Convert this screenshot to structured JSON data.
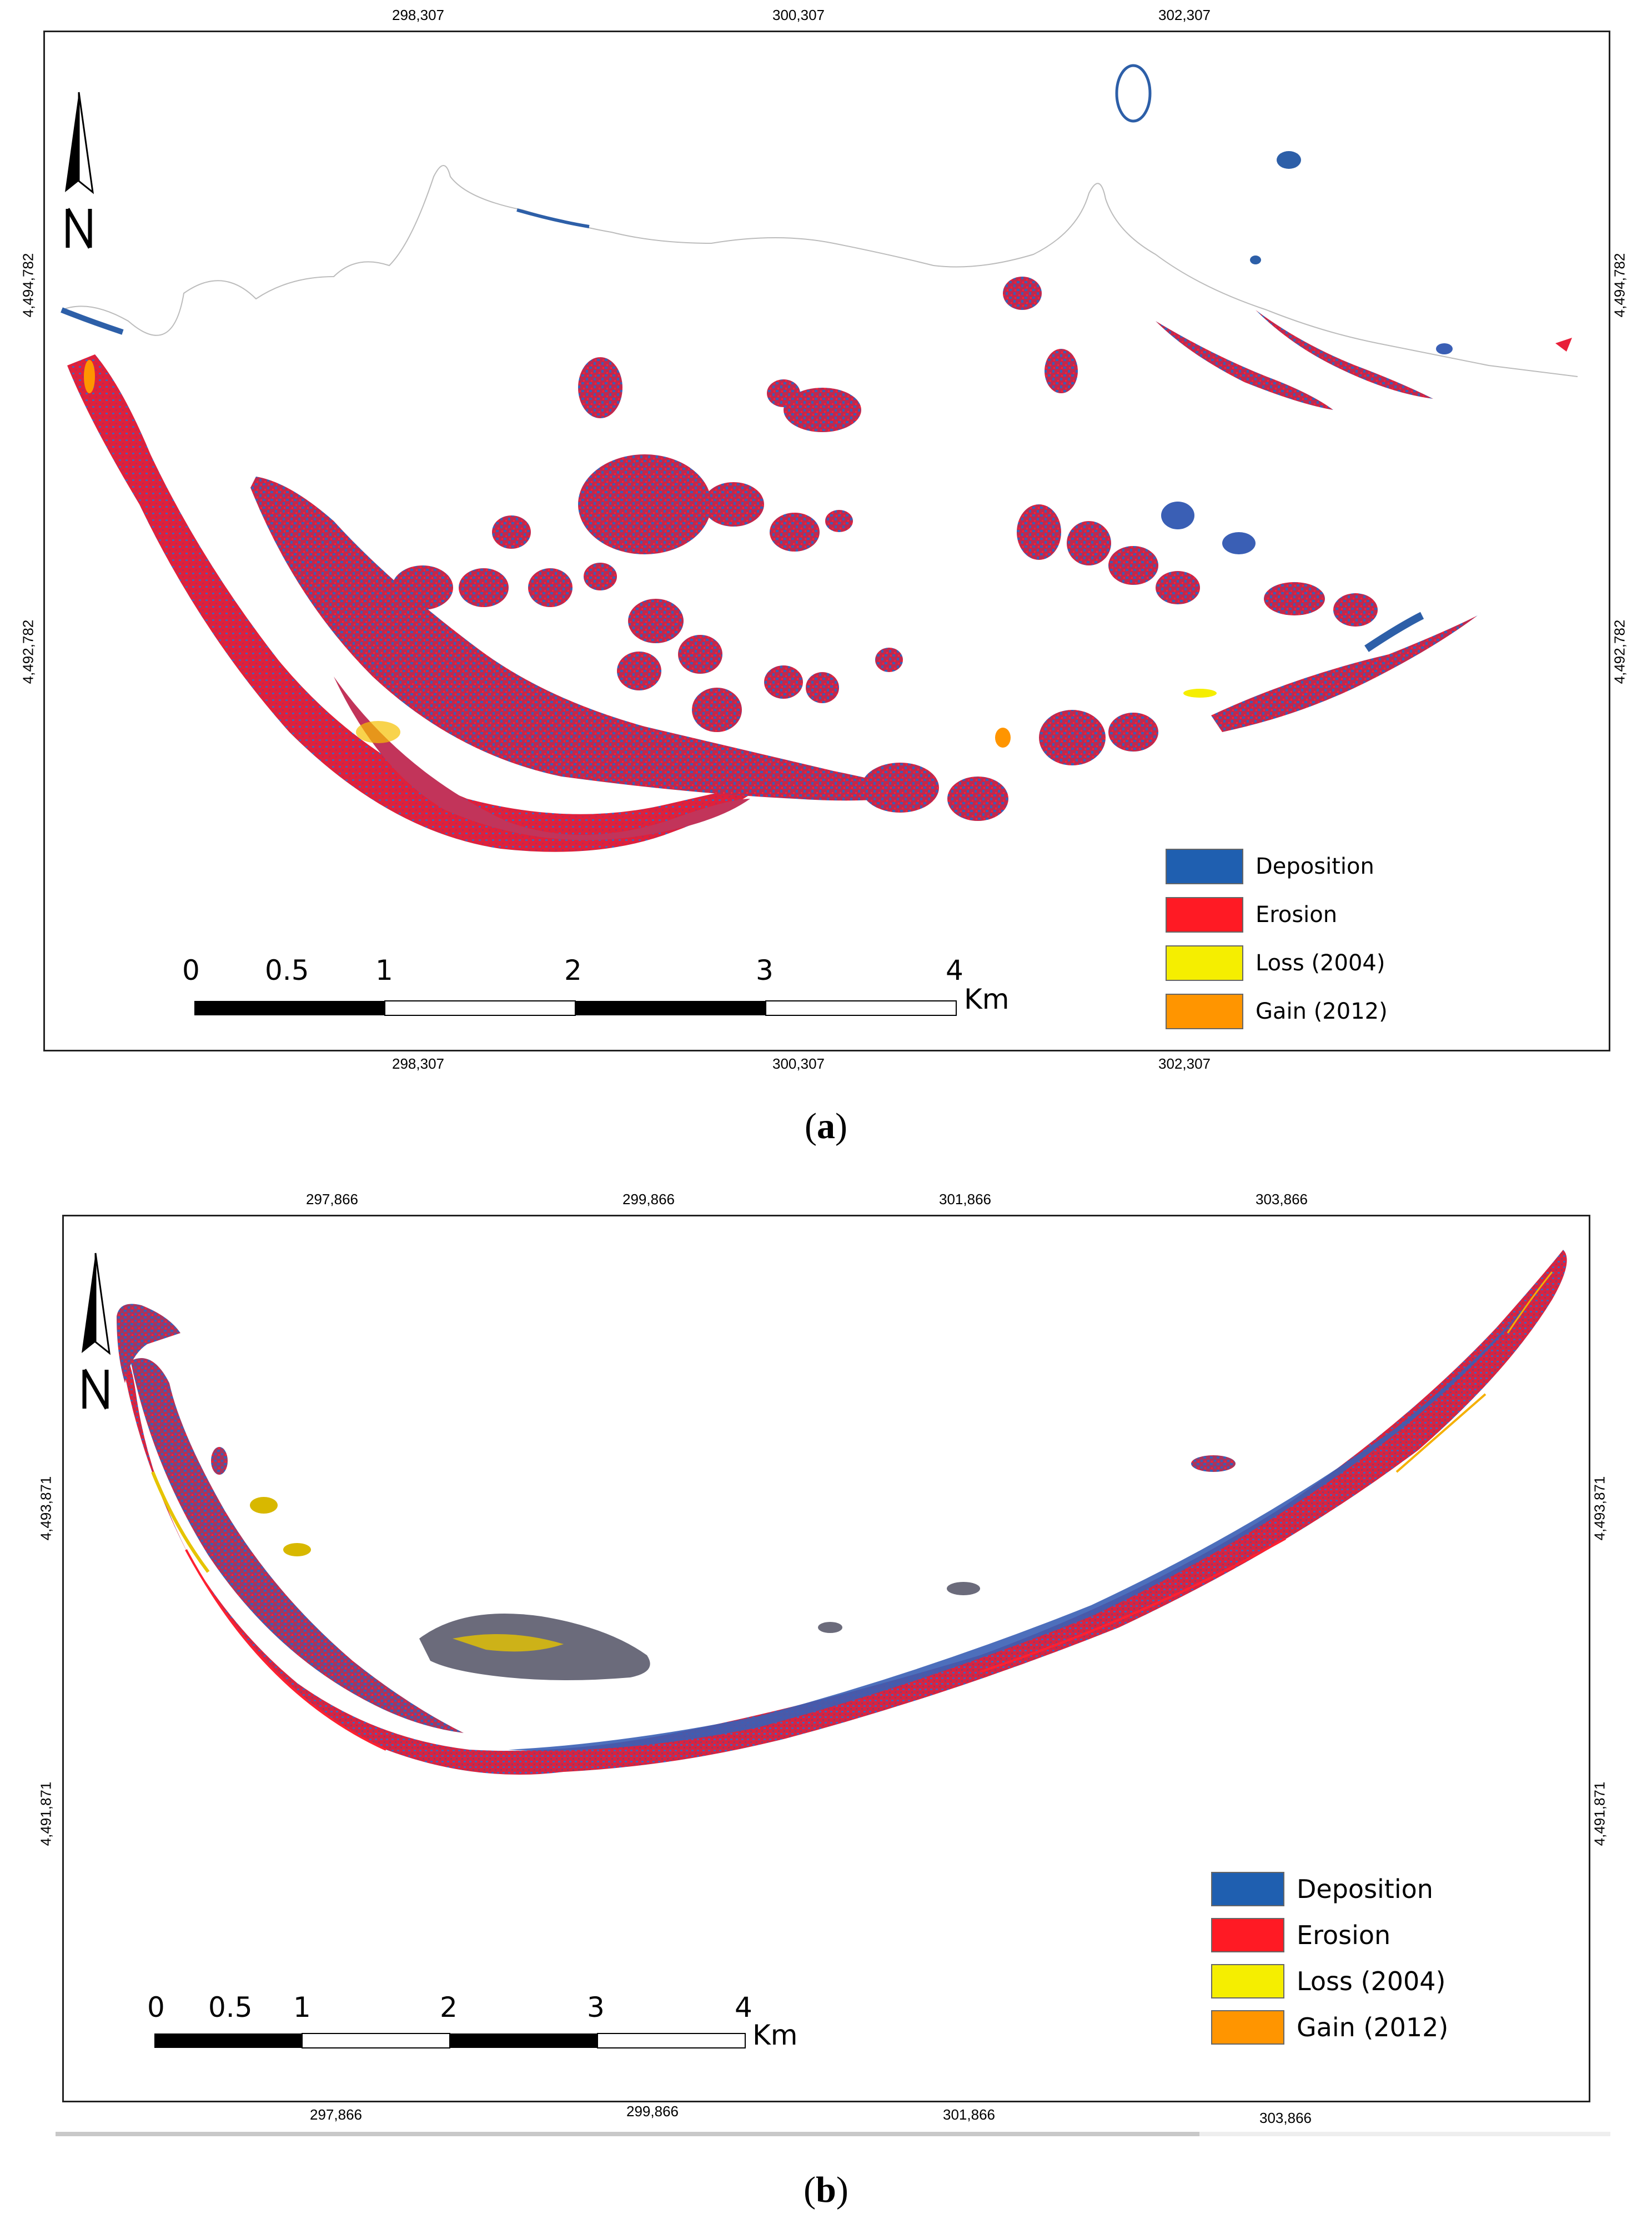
{
  "panel_a": {
    "top_ticks": [
      "298,307",
      "300,307",
      "302,307"
    ],
    "bottom_ticks": [
      "298,307",
      "300,307",
      "302,307"
    ],
    "left_ticks": [
      "4,494,782",
      "4,492,782"
    ],
    "right_ticks": [
      "4,494,782",
      "4,492,782"
    ],
    "scale_numbers": [
      "0",
      "0.5",
      "1",
      "2",
      "3",
      "4"
    ],
    "scale_unit": "Km",
    "caption_open": "(",
    "caption_letter": "a",
    "caption_close": ")"
  },
  "panel_b": {
    "top_ticks": [
      "297,866",
      "299,866",
      "301,866",
      "303,866"
    ],
    "bottom_ticks": [
      "297,866",
      "299,866",
      "301,866",
      "303,866"
    ],
    "left_ticks": [
      "4,493,871",
      "4,491,871"
    ],
    "right_ticks": [
      "4,493,871",
      "4,491,871"
    ],
    "scale_numbers": [
      "0",
      "0.5",
      "1",
      "2",
      "3",
      "4"
    ],
    "scale_unit": "Km",
    "caption_open": "(",
    "caption_letter": "b",
    "caption_close": ")"
  },
  "legend": [
    {
      "label": "Deposition",
      "color": "#1f5fb0"
    },
    {
      "label": "Erosion",
      "color": "#ff1a24"
    },
    {
      "label": "Loss (2004)",
      "color": "#f5ee00"
    },
    {
      "label": "Gain (2012)",
      "color": "#ff9500"
    }
  ],
  "colors": {
    "mixed_red_blue": "#a8345e",
    "deep_blue": "#2d5fa8",
    "red": "#e8203a",
    "frame": "#222222"
  },
  "icons": {
    "north_arrow": "north-arrow-icon"
  }
}
